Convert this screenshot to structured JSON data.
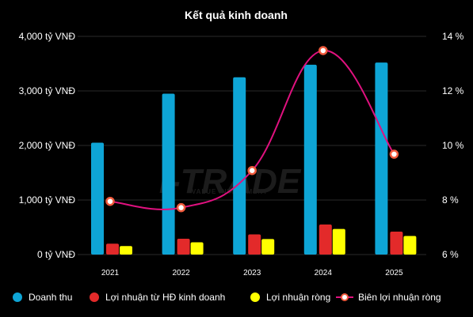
{
  "chart_data": {
    "type": "bar+line",
    "title": "Kết quả kinh doanh",
    "categories": [
      "2021",
      "2022",
      "2023",
      "2024",
      "2025"
    ],
    "series": [
      {
        "name": "Doanh thu",
        "type": "bar",
        "axis": "left",
        "color": "#0ea5d6",
        "values": [
          2050,
          2950,
          3250,
          3480,
          3520
        ]
      },
      {
        "name": "Lợi nhuận từ HĐ kinh doanh",
        "type": "bar",
        "axis": "left",
        "color": "#e32a2a",
        "values": [
          200,
          290,
          370,
          550,
          420
        ]
      },
      {
        "name": "Lợi nhuận ròng",
        "type": "bar",
        "axis": "left",
        "color": "#ffff00",
        "values": [
          155,
          225,
          285,
          470,
          340
        ]
      },
      {
        "name": "Biên lợi nhuận ròng",
        "type": "line",
        "axis": "right",
        "color": "#e0117f",
        "values": [
          7.95,
          7.72,
          9.08,
          13.48,
          9.68
        ]
      }
    ],
    "y_left": {
      "min": 0,
      "max": 4000,
      "ticks": [
        "0 tỷ VNĐ",
        "1,000 tỷ VNĐ",
        "2,000 tỷ VNĐ",
        "3,000 tỷ VNĐ",
        "4,000 tỷ VNĐ"
      ]
    },
    "y_right": {
      "min": 6,
      "max": 14,
      "ticks": [
        "6 %",
        "8 %",
        "10 %",
        "12 %",
        "14 %"
      ]
    },
    "grid": true,
    "legend": "bottom"
  },
  "watermark": {
    "text": "I-TRADE",
    "subtext": "VALUE INVESTMENT"
  }
}
